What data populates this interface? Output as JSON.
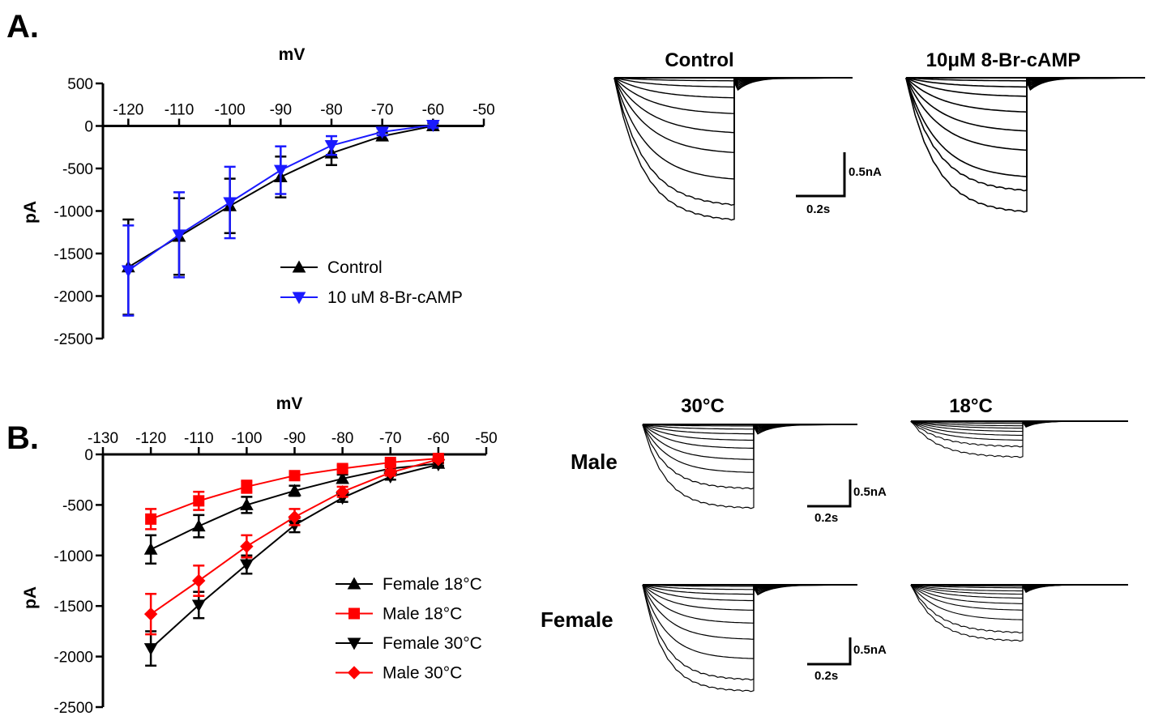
{
  "panels": {
    "A": {
      "letter": "A.",
      "chart_data": {
        "type": "line",
        "xlabel": "mV",
        "ylabel": "pA",
        "xlim": [
          -125,
          -50
        ],
        "ylim": [
          -2500,
          500
        ],
        "xticks": [
          -120,
          -110,
          -100,
          -90,
          -80,
          -70,
          -60,
          -50
        ],
        "yticks": [
          500,
          0,
          -500,
          -1000,
          -1500,
          -2000,
          -2500
        ],
        "legend_position": "bottom-right",
        "series": [
          {
            "name": "Control",
            "color": "#000000",
            "marker": "triangle-up",
            "x": [
              -120,
              -110,
              -100,
              -90,
              -80,
              -70,
              -60
            ],
            "y": [
              -1660,
              -1300,
              -940,
              -600,
              -320,
              -120,
              0
            ],
            "err": [
              560,
              450,
              320,
              240,
              140,
              40,
              30
            ]
          },
          {
            "name": "10 uM 8-Br-cAMP",
            "color": "#1a1aff",
            "marker": "triangle-down",
            "x": [
              -120,
              -110,
              -100,
              -90,
              -80,
              -70,
              -60
            ],
            "y": [
              -1700,
              -1280,
              -900,
              -520,
              -230,
              -70,
              10
            ],
            "err": [
              530,
              500,
              420,
              280,
              110,
              40,
              30
            ]
          }
        ]
      },
      "traces": {
        "titles": [
          "Control",
          "10μM 8-Br-cAMP"
        ],
        "scale_current": "0.5nA",
        "scale_time": "0.2s"
      }
    },
    "B": {
      "letter": "B.",
      "chart_data": {
        "type": "line",
        "xlabel": "mV",
        "ylabel": "pA",
        "xlim": [
          -130,
          -50
        ],
        "ylim": [
          -2500,
          0
        ],
        "xticks": [
          -130,
          -120,
          -110,
          -100,
          -90,
          -80,
          -70,
          -60,
          -50
        ],
        "yticks": [
          0,
          -500,
          -1000,
          -1500,
          -2000,
          -2500
        ],
        "legend_position": "bottom-right",
        "series": [
          {
            "name": "Female 18°C",
            "color": "#000000",
            "marker": "triangle-up",
            "x": [
              -120,
              -110,
              -100,
              -90,
              -80,
              -70,
              -60
            ],
            "y": [
              -940,
              -710,
              -500,
              -360,
              -240,
              -140,
              -90
            ],
            "err": [
              140,
              110,
              80,
              50,
              40,
              30,
              20
            ]
          },
          {
            "name": "Male 18°C",
            "color": "#ff0000",
            "marker": "square",
            "x": [
              -120,
              -110,
              -100,
              -90,
              -80,
              -70,
              -60
            ],
            "y": [
              -640,
              -460,
              -320,
              -210,
              -140,
              -80,
              -40
            ],
            "err": [
              100,
              90,
              60,
              40,
              30,
              20,
              20
            ]
          },
          {
            "name": "Female 30°C",
            "color": "#000000",
            "marker": "triangle-down",
            "x": [
              -120,
              -110,
              -100,
              -90,
              -80,
              -70,
              -60
            ],
            "y": [
              -1920,
              -1490,
              -1090,
              -700,
              -430,
              -220,
              -100
            ],
            "err": [
              170,
              130,
              90,
              70,
              40,
              30,
              20
            ]
          },
          {
            "name": "Male 30°C",
            "color": "#ff0000",
            "marker": "diamond",
            "x": [
              -120,
              -110,
              -100,
              -90,
              -80,
              -70,
              -60
            ],
            "y": [
              -1580,
              -1250,
              -910,
              -620,
              -370,
              -180,
              -50
            ],
            "err": [
              200,
              150,
              110,
              80,
              50,
              30,
              20
            ]
          }
        ]
      },
      "traces": {
        "titles": [
          "30°C",
          "18°C"
        ],
        "rows": [
          "Male",
          "Female"
        ],
        "scale_current": "0.5nA",
        "scale_time": "0.2s"
      }
    }
  }
}
